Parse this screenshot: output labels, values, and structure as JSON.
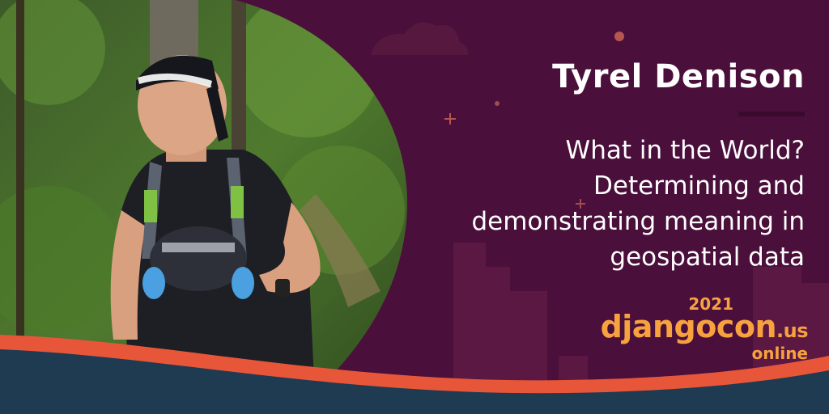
{
  "speaker": {
    "name": "Tyrel Denison"
  },
  "talk": {
    "title_lines": [
      "What in the World?",
      "Determining and",
      "demonstrating meaning in",
      "geospatial data"
    ]
  },
  "event": {
    "year": "2021",
    "name": "djangocon",
    "tld": ".us",
    "mode": "online"
  },
  "colors": {
    "background": "#4a0f3a",
    "accent_orange": "#f7a23e",
    "wave_teal": "#1e3b52",
    "wave_red": "#e8563a",
    "text": "#ffffff"
  },
  "icons": [
    "plus-sparkle-icon",
    "dot-sparkle-icon",
    "cloud-decoration",
    "city-skyline-decoration",
    "speaker-photo"
  ]
}
